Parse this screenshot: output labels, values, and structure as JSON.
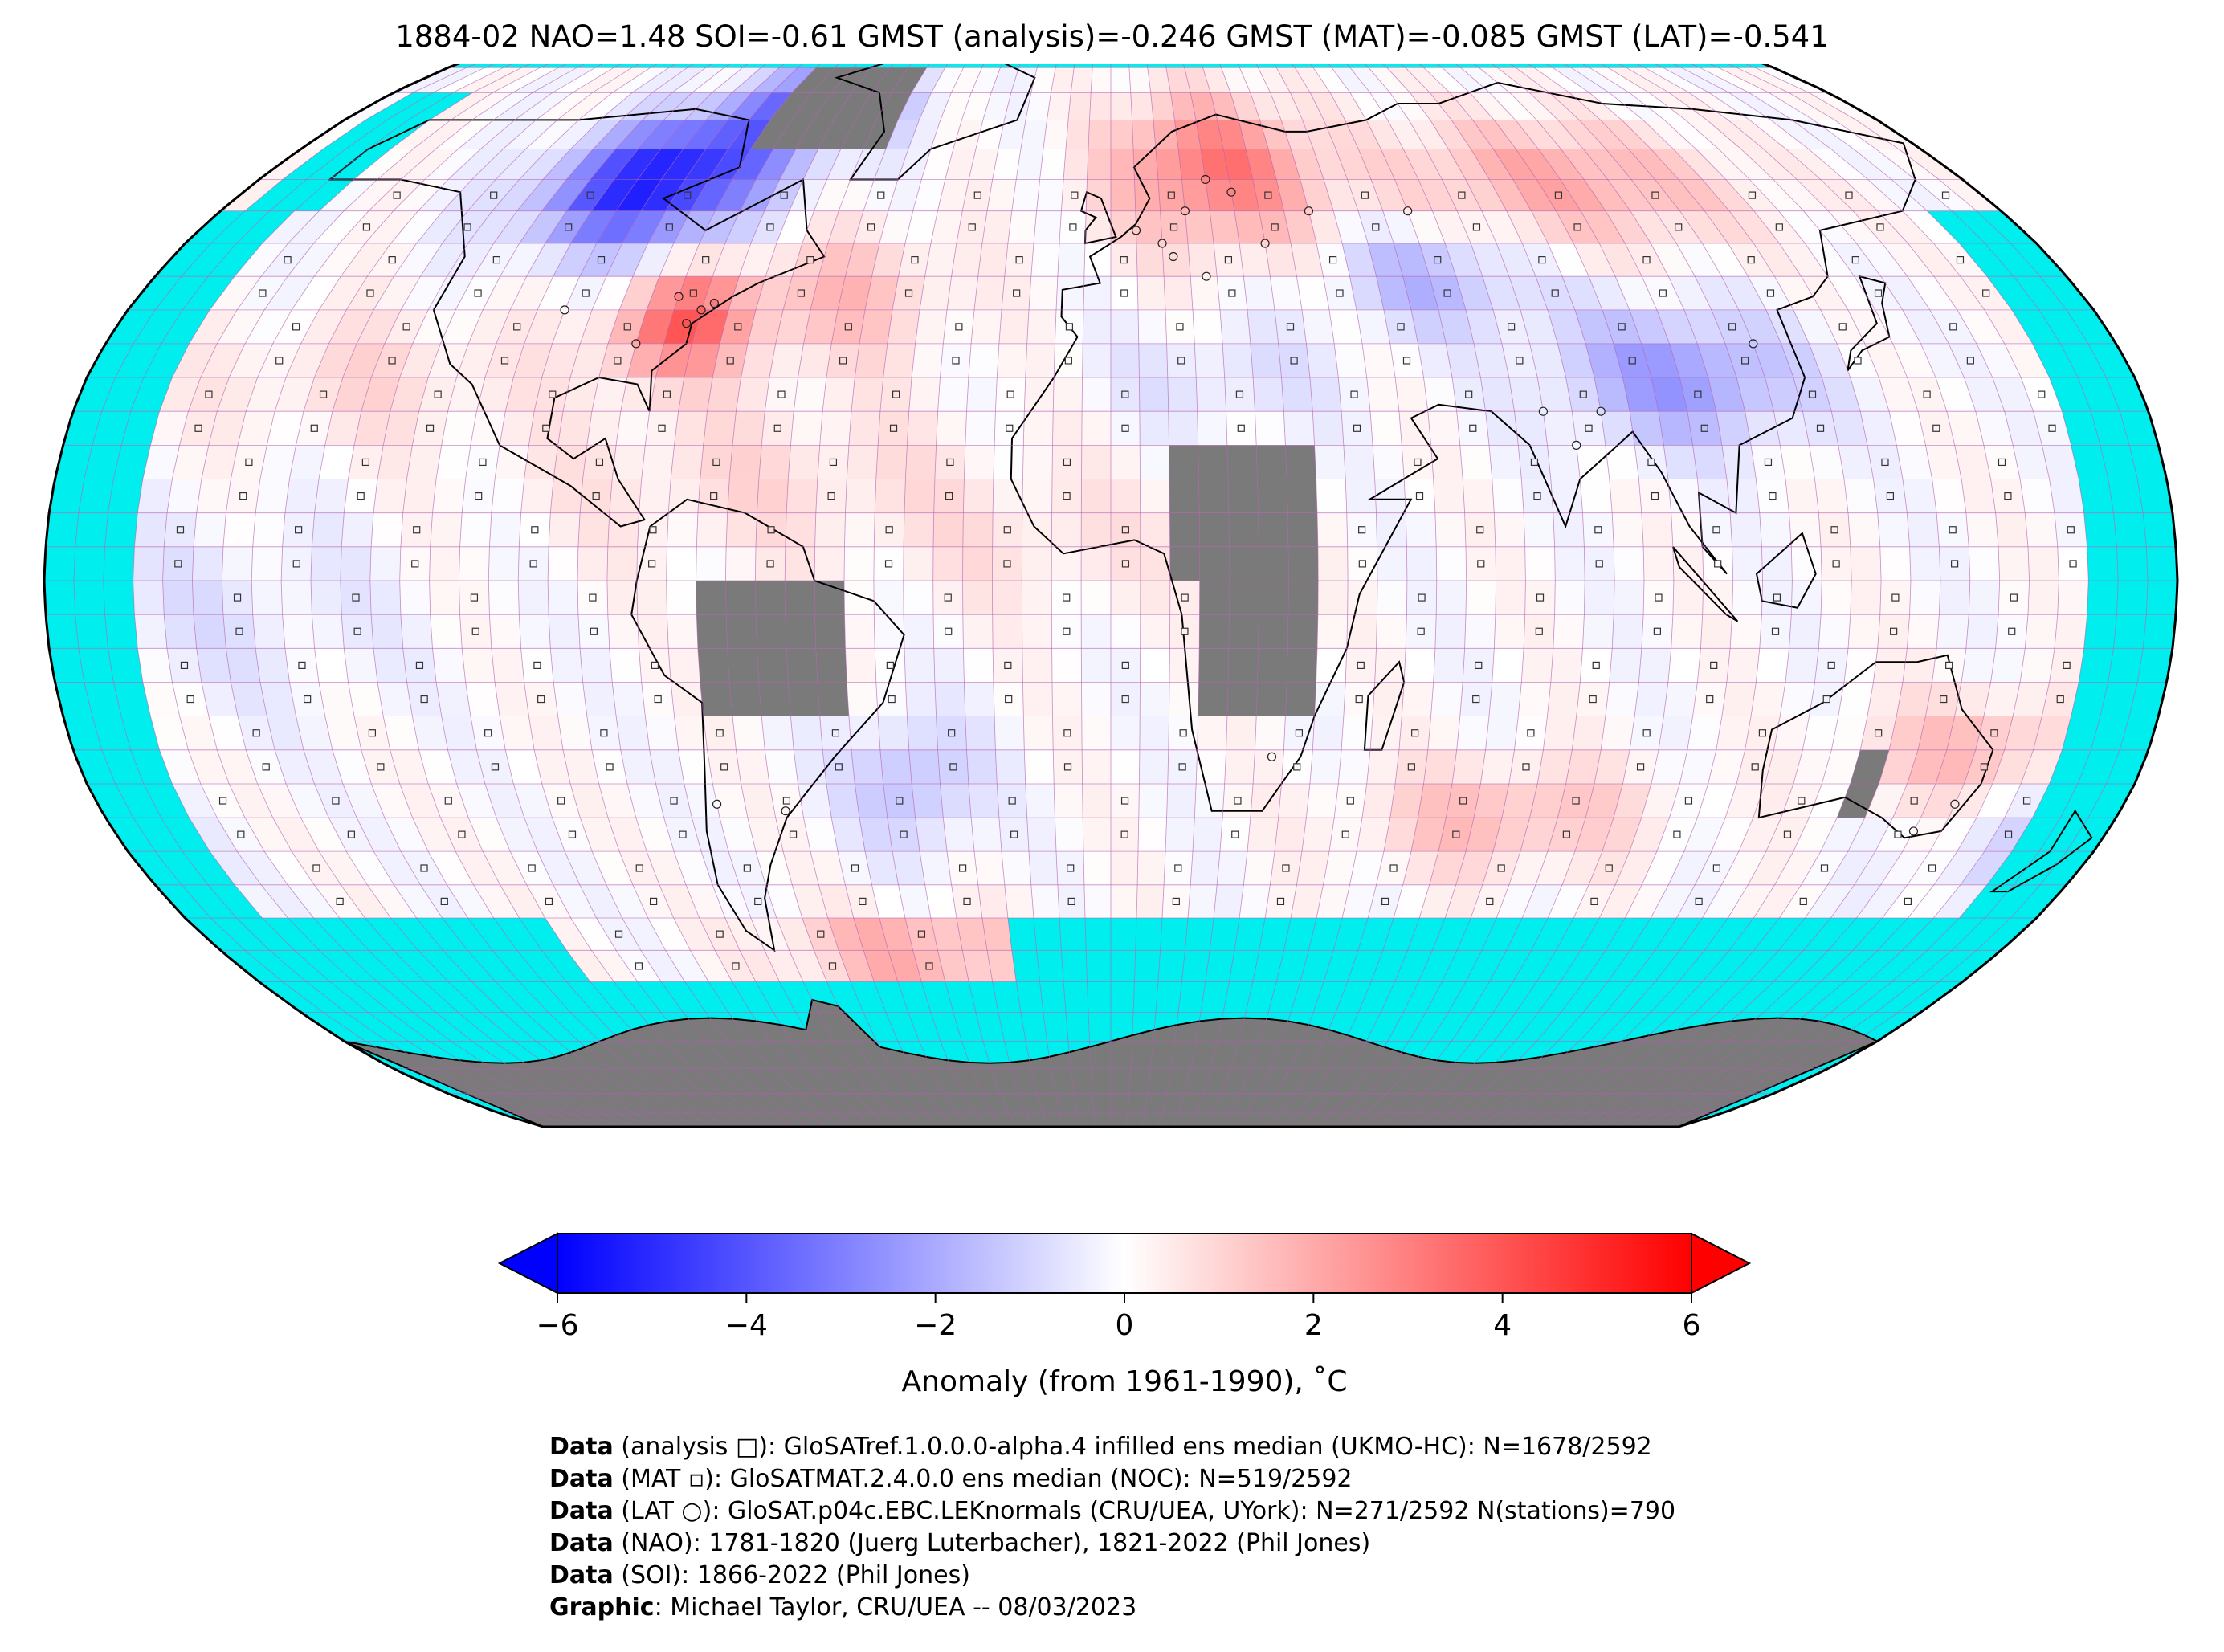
{
  "title": "1884-02 NAO=1.48 SOI=-0.61 GMST (analysis)=-0.246 GMST (MAT)=-0.085 GMST (LAT)=-0.541",
  "colorbar": {
    "label": "Anomaly (from 1961-1990), ˚C",
    "ticks": [
      "−6",
      "−4",
      "−2",
      "0",
      "2",
      "4",
      "6"
    ],
    "range": [
      -6,
      6
    ],
    "colormap": [
      "#0000ff",
      "#ffffff",
      "#ff0000"
    ]
  },
  "colors": {
    "no_data": "#00eeee",
    "no_ocean_grid": "#7a7a7a",
    "land_outline": "#000000",
    "grid_line": "#b060b0"
  },
  "credits": [
    {
      "label": "Data",
      "text": " (analysis □): GloSATref.1.0.0.0-alpha.4 infilled ens median (UKMO-HC): N=1678/2592"
    },
    {
      "label": "Data",
      "text": " (MAT ▫): GloSATMAT.2.4.0.0 ens median (NOC): N=519/2592"
    },
    {
      "label": "Data",
      "text": " (LAT ○): GloSAT.p04c.EBC.LEKnormals (CRU/UEA, UYork): N=271/2592 N(stations)=790"
    },
    {
      "label": "Data",
      "text": " (NAO): 1781-1820 (Juerg Luterbacher), 1821-2022 (Phil Jones)"
    },
    {
      "label": "Data",
      "text": " (SOI): 1866-2022 (Phil Jones)"
    },
    {
      "label": "Graphic",
      "text": ": Michael Taylor, CRU/UEA -- 08/03/2023"
    }
  ]
}
